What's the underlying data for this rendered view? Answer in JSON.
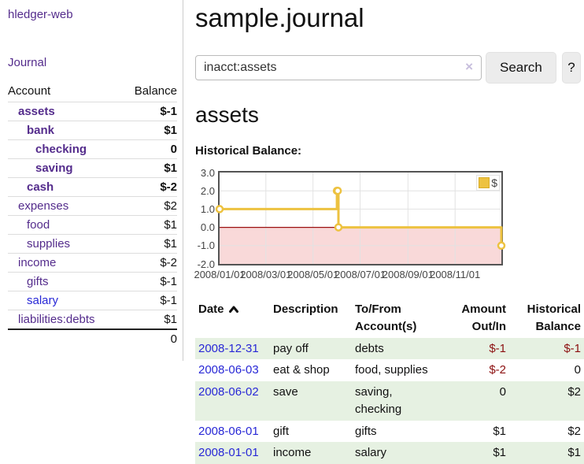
{
  "colors": {
    "accent_purple": "#542c8c",
    "link_blue": "#2828d6",
    "negative_red": "#8c1010",
    "muted_negative": "#b86a6a",
    "row_stripe_green": "#e6f1e2",
    "chart_series_gold": "#edc240",
    "chart_negative_region": "#f9d9d9",
    "chart_zero_line": "#9b1212"
  },
  "sidebar": {
    "brand": "hledger-web",
    "journal_link": "Journal",
    "accounts_table": {
      "headers": {
        "account": "Account",
        "balance": "Balance"
      },
      "rows": [
        {
          "name": "assets",
          "indent": 1,
          "balance": "$-1",
          "bold": true,
          "balance_style": "negative"
        },
        {
          "name": "bank",
          "indent": 2,
          "balance": "$1",
          "bold": true,
          "balance_style": "normal"
        },
        {
          "name": "checking",
          "indent": 3,
          "balance": "0",
          "bold": true,
          "balance_style": "normal"
        },
        {
          "name": "saving",
          "indent": 3,
          "balance": "$1",
          "bold": true,
          "balance_style": "normal"
        },
        {
          "name": "cash",
          "indent": 2,
          "balance": "$-2",
          "bold": true,
          "balance_style": "negative"
        },
        {
          "name": "expenses",
          "indent": 1,
          "balance": "$2",
          "bold": false,
          "balance_style": "normal"
        },
        {
          "name": "food",
          "indent": 2,
          "balance": "$1",
          "bold": false,
          "balance_style": "normal"
        },
        {
          "name": "supplies",
          "indent": 2,
          "balance": "$1",
          "bold": false,
          "balance_style": "normal"
        },
        {
          "name": "income",
          "indent": 1,
          "balance": "$-2",
          "bold": false,
          "balance_style": "muted-negative"
        },
        {
          "name": "gifts",
          "indent": 2,
          "balance": "$-1",
          "bold": false,
          "balance_style": "muted-negative"
        },
        {
          "name": "salary",
          "indent": 2,
          "balance": "$-1",
          "bold": false,
          "balance_style": "muted-negative",
          "name_style": "blue"
        },
        {
          "name": "liabilities:debts",
          "indent": 1,
          "balance": "$1",
          "bold": false,
          "balance_style": "normal"
        }
      ],
      "total": "0"
    }
  },
  "main": {
    "title": "sample.journal",
    "search": {
      "value": "inacct:assets",
      "clear_icon": "×",
      "search_button": "Search",
      "help_button": "?"
    },
    "section_title": "assets",
    "chart_label": "Historical Balance:"
  },
  "chart_data": {
    "type": "line",
    "title": "Historical Balance",
    "step": true,
    "legend": {
      "label": "$",
      "position": "top-right"
    },
    "ylim": [
      -2,
      3
    ],
    "xlim_days": [
      0,
      365
    ],
    "grid": true,
    "yticks": [
      {
        "label": "3.0",
        "value": 3
      },
      {
        "label": "2.0",
        "value": 2
      },
      {
        "label": "1.0",
        "value": 1
      },
      {
        "label": "0.0",
        "value": 0
      },
      {
        "label": "-1.0",
        "value": -1
      },
      {
        "label": "-2.0",
        "value": -2
      }
    ],
    "xticks": [
      {
        "label": "2008/01/01",
        "day": 0
      },
      {
        "label": "2008/03/01",
        "day": 60
      },
      {
        "label": "2008/05/01",
        "day": 121
      },
      {
        "label": "2008/07/01",
        "day": 182
      },
      {
        "label": "2008/09/01",
        "day": 244
      },
      {
        "label": "2008/11/01",
        "day": 305
      }
    ],
    "series": [
      {
        "name": "$",
        "color": "#edc240",
        "points": [
          {
            "date": "2008-01-01",
            "day": 0,
            "value": 1
          },
          {
            "date": "2008-06-01",
            "day": 152,
            "value": 2
          },
          {
            "date": "2008-06-02",
            "day": 153,
            "value": 2
          },
          {
            "date": "2008-06-03",
            "day": 154,
            "value": 0
          },
          {
            "date": "2008-12-31",
            "day": 365,
            "value": -1
          }
        ]
      }
    ],
    "negative_region_color": "#f9d9d9",
    "zero_line_color": "#9b1212"
  },
  "transactions": {
    "headers": [
      {
        "label": "Date",
        "sort": "asc",
        "align": "left"
      },
      {
        "label": "Description",
        "align": "left"
      },
      {
        "label": "To/From Account(s)",
        "align": "left"
      },
      {
        "label": "Amount Out/In",
        "align": "right"
      },
      {
        "label": "Historical Balance",
        "align": "right"
      }
    ],
    "rows": [
      {
        "date": "2008-12-31",
        "description": "pay off",
        "accounts": "debts",
        "amount": "$-1",
        "amount_negative": true,
        "balance": "$-1",
        "balance_negative": true
      },
      {
        "date": "2008-06-03",
        "description": "eat & shop",
        "accounts": "food, supplies",
        "amount": "$-2",
        "amount_negative": true,
        "balance": "0",
        "balance_negative": false
      },
      {
        "date": "2008-06-02",
        "description": "save",
        "accounts": "saving, checking",
        "amount": "0",
        "amount_negative": false,
        "balance": "$2",
        "balance_negative": false
      },
      {
        "date": "2008-06-01",
        "description": "gift",
        "accounts": "gifts",
        "amount": "$1",
        "amount_negative": false,
        "balance": "$2",
        "balance_negative": false
      },
      {
        "date": "2008-01-01",
        "description": "income",
        "accounts": "salary",
        "amount": "$1",
        "amount_negative": false,
        "balance": "$1",
        "balance_negative": false
      }
    ]
  }
}
